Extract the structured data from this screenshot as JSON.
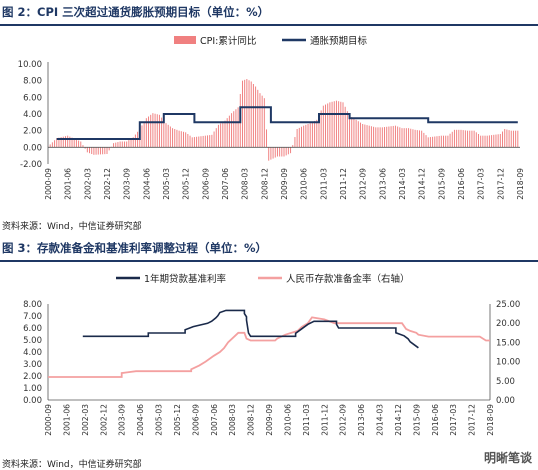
{
  "figure1": {
    "title": "图 2：CPI 三次超过通货膨胀预期目标（单位：%）",
    "source": "资料来源：Wind，中信证券研究部"
  },
  "figure2": {
    "title": "图 3：存款准备金和基准利率调整过程（单位：%）",
    "source": "资料来源：Wind，中信证券研究部"
  },
  "watermark": "明晰笔谈",
  "colors": {
    "bar": "#f08080",
    "navy": "#1f3864",
    "pink": "#f4a0a0",
    "dark": "#1a2a4a"
  },
  "chart_data": [
    {
      "type": "bar",
      "title": "",
      "ylim": [
        -2,
        10
      ],
      "yticks": [
        "-2.00",
        "0.00",
        "2.00",
        "4.00",
        "6.00",
        "8.00",
        "10.00"
      ],
      "xticks": [
        "2000-09",
        "2001-06",
        "2002-03",
        "2002-12",
        "2003-09",
        "2004-06",
        "2005-03",
        "2005-12",
        "2006-09",
        "2007-06",
        "2008-03",
        "2008-12",
        "2009-09",
        "2010-06",
        "2011-03",
        "2011-12",
        "2012-09",
        "2013-06",
        "2014-03",
        "2014-12",
        "2015-09",
        "2016-06",
        "2017-03",
        "2017-12",
        "2018-09"
      ],
      "x_range": [
        "2000-09",
        "2018-09"
      ],
      "legend": [
        "CPI:累计同比",
        "通胀预期目标"
      ],
      "series": [
        {
          "name": "CPI:累计同比",
          "type": "bar",
          "points": [
            [
              "2000-09",
              0.1
            ],
            [
              "2001-01",
              1.1
            ],
            [
              "2001-06",
              1.4
            ],
            [
              "2001-12",
              0.7
            ],
            [
              "2002-03",
              -0.6
            ],
            [
              "2002-06",
              -0.9
            ],
            [
              "2002-12",
              -0.8
            ],
            [
              "2003-03",
              0.5
            ],
            [
              "2003-06",
              0.7
            ],
            [
              "2003-09",
              0.7
            ],
            [
              "2003-12",
              1.2
            ],
            [
              "2004-03",
              2.2
            ],
            [
              "2004-06",
              3.5
            ],
            [
              "2004-09",
              4.1
            ],
            [
              "2004-12",
              3.9
            ],
            [
              "2005-03",
              2.9
            ],
            [
              "2005-06",
              2.3
            ],
            [
              "2005-09",
              2.0
            ],
            [
              "2005-12",
              1.8
            ],
            [
              "2006-03",
              1.2
            ],
            [
              "2006-06",
              1.3
            ],
            [
              "2006-09",
              1.4
            ],
            [
              "2006-12",
              1.5
            ],
            [
              "2007-03",
              2.7
            ],
            [
              "2007-06",
              3.2
            ],
            [
              "2007-09",
              4.1
            ],
            [
              "2007-12",
              4.8
            ],
            [
              "2008-02",
              8.0
            ],
            [
              "2008-04",
              8.2
            ],
            [
              "2008-06",
              7.9
            ],
            [
              "2008-08",
              7.3
            ],
            [
              "2008-10",
              6.5
            ],
            [
              "2008-12",
              5.9
            ],
            [
              "2009-02",
              -1.6
            ],
            [
              "2009-06",
              -1.1
            ],
            [
              "2009-09",
              -1.1
            ],
            [
              "2009-12",
              -0.7
            ],
            [
              "2010-03",
              2.2
            ],
            [
              "2010-06",
              2.6
            ],
            [
              "2010-09",
              2.9
            ],
            [
              "2010-12",
              3.3
            ],
            [
              "2011-03",
              5.0
            ],
            [
              "2011-06",
              5.4
            ],
            [
              "2011-09",
              5.6
            ],
            [
              "2011-12",
              5.4
            ],
            [
              "2012-03",
              3.8
            ],
            [
              "2012-06",
              3.3
            ],
            [
              "2012-09",
              2.8
            ],
            [
              "2012-12",
              2.6
            ],
            [
              "2013-03",
              2.4
            ],
            [
              "2013-06",
              2.4
            ],
            [
              "2013-09",
              2.5
            ],
            [
              "2013-12",
              2.6
            ],
            [
              "2014-03",
              2.3
            ],
            [
              "2014-06",
              2.3
            ],
            [
              "2014-09",
              2.1
            ],
            [
              "2014-12",
              2.0
            ],
            [
              "2015-03",
              1.2
            ],
            [
              "2015-06",
              1.3
            ],
            [
              "2015-09",
              1.4
            ],
            [
              "2015-12",
              1.4
            ],
            [
              "2016-03",
              2.1
            ],
            [
              "2016-06",
              2.1
            ],
            [
              "2016-09",
              2.0
            ],
            [
              "2016-12",
              2.0
            ],
            [
              "2017-03",
              1.4
            ],
            [
              "2017-06",
              1.4
            ],
            [
              "2017-09",
              1.5
            ],
            [
              "2017-12",
              1.6
            ],
            [
              "2018-02",
              2.2
            ],
            [
              "2018-05",
              2.0
            ],
            [
              "2018-08",
              2.0
            ]
          ]
        },
        {
          "name": "通胀预期目标",
          "type": "line",
          "points": [
            [
              "2001-01",
              1.0
            ],
            [
              "2004-03",
              1.0
            ],
            [
              "2004-03",
              3.0
            ],
            [
              "2005-02",
              3.0
            ],
            [
              "2005-02",
              4.0
            ],
            [
              "2006-04",
              4.0
            ],
            [
              "2006-04",
              3.0
            ],
            [
              "2008-01",
              3.0
            ],
            [
              "2008-01",
              4.8
            ],
            [
              "2009-03",
              4.8
            ],
            [
              "2009-03",
              3.0
            ],
            [
              "2011-01",
              3.0
            ],
            [
              "2011-01",
              4.0
            ],
            [
              "2012-03",
              4.0
            ],
            [
              "2012-03",
              3.5
            ],
            [
              "2015-03",
              3.5
            ],
            [
              "2015-03",
              3.0
            ],
            [
              "2018-08",
              3.0
            ]
          ]
        }
      ]
    },
    {
      "type": "line",
      "title": "",
      "ylim_left": [
        0,
        8
      ],
      "ylim_right": [
        0,
        25
      ],
      "yticks_left": [
        "0.00",
        "1.00",
        "2.00",
        "3.00",
        "4.00",
        "5.00",
        "6.00",
        "7.00",
        "8.00"
      ],
      "yticks_right": [
        "0.00",
        "5.00",
        "10.00",
        "15.00",
        "20.00",
        "25.00"
      ],
      "xticks": [
        "2000-09",
        "2001-06",
        "2002-03",
        "2002-12",
        "2003-09",
        "2004-06",
        "2005-03",
        "2005-12",
        "2006-09",
        "2007-06",
        "2008-03",
        "2008-12",
        "2009-09",
        "2010-06",
        "2011-03",
        "2011-12",
        "2012-09",
        "2013-06",
        "2014-03",
        "2014-12",
        "2015-09",
        "2016-06",
        "2017-03",
        "2017-12",
        "2018-09"
      ],
      "x_range": [
        "2000-09",
        "2018-09"
      ],
      "legend": [
        "1年期贷款基准利率",
        "人民币存款准备金率（右轴）"
      ],
      "series": [
        {
          "name": "1年期贷款基准利率",
          "axis": "left",
          "points": [
            [
              "2002-02",
              5.31
            ],
            [
              "2004-10",
              5.31
            ],
            [
              "2004-10",
              5.58
            ],
            [
              "2006-04",
              5.58
            ],
            [
              "2006-04",
              5.85
            ],
            [
              "2006-08",
              6.12
            ],
            [
              "2007-03",
              6.39
            ],
            [
              "2007-05",
              6.57
            ],
            [
              "2007-07",
              6.84
            ],
            [
              "2007-08",
              7.02
            ],
            [
              "2007-09",
              7.29
            ],
            [
              "2007-12",
              7.47
            ],
            [
              "2008-09",
              7.47
            ],
            [
              "2008-09",
              7.2
            ],
            [
              "2008-10",
              6.93
            ],
            [
              "2008-10",
              6.66
            ],
            [
              "2008-11",
              5.58
            ],
            [
              "2008-12",
              5.31
            ],
            [
              "2010-10",
              5.31
            ],
            [
              "2010-10",
              5.56
            ],
            [
              "2010-12",
              5.81
            ],
            [
              "2011-02",
              6.06
            ],
            [
              "2011-04",
              6.31
            ],
            [
              "2011-07",
              6.56
            ],
            [
              "2012-06",
              6.56
            ],
            [
              "2012-06",
              6.31
            ],
            [
              "2012-07",
              6.0
            ],
            [
              "2014-11",
              6.0
            ],
            [
              "2014-11",
              5.6
            ],
            [
              "2015-03",
              5.35
            ],
            [
              "2015-05",
              5.1
            ],
            [
              "2015-06",
              4.85
            ],
            [
              "2015-08",
              4.6
            ],
            [
              "2015-10",
              4.35
            ]
          ]
        },
        {
          "name": "人民币存款准备金率（右轴）",
          "axis": "right",
          "points": [
            [
              "2000-09",
              6.0
            ],
            [
              "2003-09",
              6.0
            ],
            [
              "2003-09",
              7.0
            ],
            [
              "2004-04",
              7.5
            ],
            [
              "2006-07",
              7.5
            ],
            [
              "2006-07",
              8.0
            ],
            [
              "2006-11",
              9.0
            ],
            [
              "2007-02",
              10.0
            ],
            [
              "2007-06",
              11.5
            ],
            [
              "2007-09",
              12.5
            ],
            [
              "2007-11",
              13.5
            ],
            [
              "2008-01",
              15.0
            ],
            [
              "2008-06",
              17.5
            ],
            [
              "2008-09",
              17.5
            ],
            [
              "2008-10",
              16.0
            ],
            [
              "2008-12",
              15.5
            ],
            [
              "2009-12",
              15.5
            ],
            [
              "2010-01",
              16.0
            ],
            [
              "2010-05",
              17.0
            ],
            [
              "2010-11",
              18.0
            ],
            [
              "2011-01",
              19.0
            ],
            [
              "2011-04",
              20.0
            ],
            [
              "2011-06",
              21.5
            ],
            [
              "2011-12",
              21.0
            ],
            [
              "2012-05",
              20.0
            ],
            [
              "2015-02",
              20.0
            ],
            [
              "2015-04",
              18.5
            ],
            [
              "2015-06",
              18.0
            ],
            [
              "2015-09",
              17.5
            ],
            [
              "2015-10",
              17.0
            ],
            [
              "2016-03",
              16.5
            ],
            [
              "2018-04",
              16.5
            ],
            [
              "2018-07",
              15.5
            ],
            [
              "2018-09",
              15.5
            ]
          ]
        }
      ]
    }
  ]
}
